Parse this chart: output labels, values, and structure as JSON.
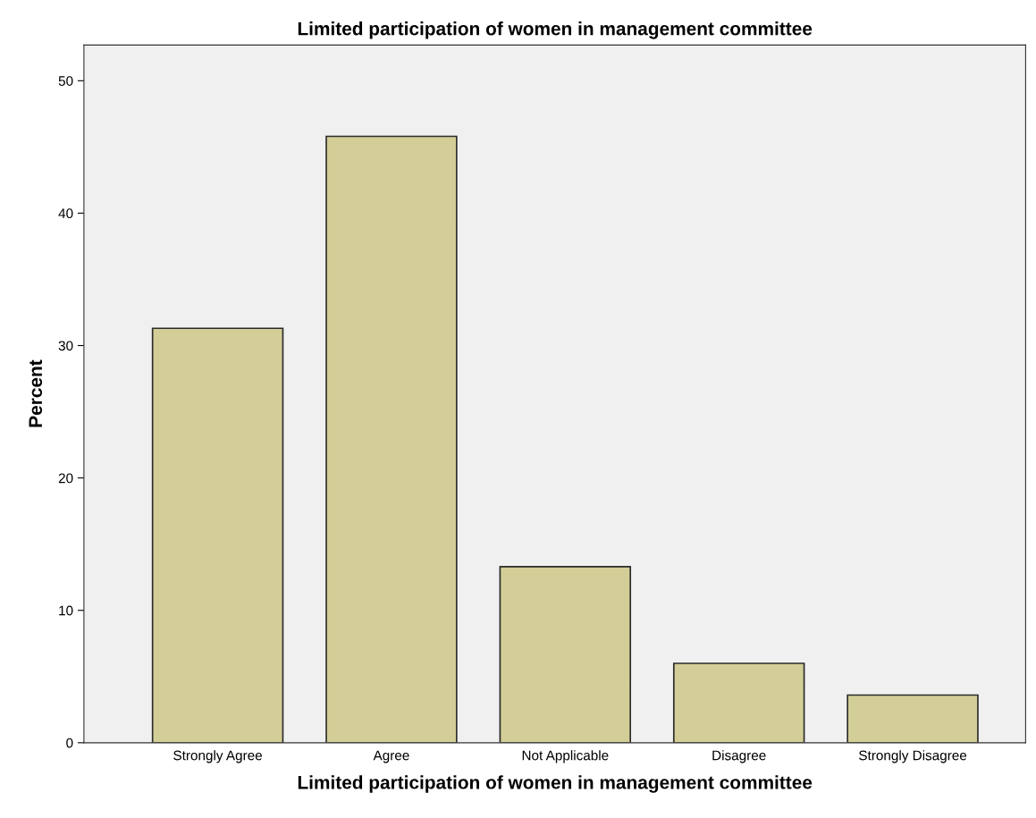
{
  "chart_data": {
    "type": "bar",
    "title": "Limited participation of women in management committee",
    "xlabel": "Limited participation of women in management committee",
    "ylabel": "Percent",
    "categories": [
      "Strongly Agree",
      "Agree",
      "Not Applicable",
      "Disagree",
      "Strongly Disagree"
    ],
    "values": [
      31.3,
      45.8,
      13.3,
      6.0,
      3.6
    ],
    "color": "#d3ce97",
    "ylim": [
      0,
      52.7
    ],
    "yticks": [
      0,
      10,
      20,
      30,
      40,
      50
    ],
    "grid": false,
    "legend": false
  }
}
